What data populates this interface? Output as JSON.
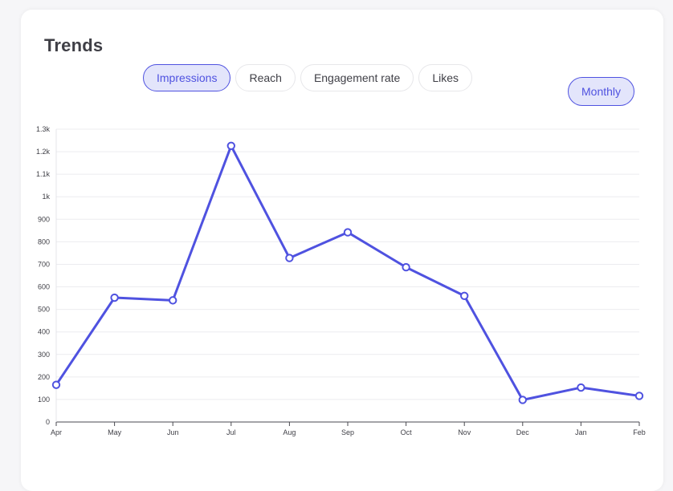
{
  "header": {
    "title": "Trends"
  },
  "tabs": [
    {
      "label": "Impressions",
      "active": true
    },
    {
      "label": "Reach",
      "active": false
    },
    {
      "label": "Engagement rate",
      "active": false
    },
    {
      "label": "Likes",
      "active": false
    }
  ],
  "period": {
    "label": "Monthly"
  },
  "colors": {
    "accent": "#4f52e0",
    "accent_bg": "#e3e5fb",
    "grid": "#ececef",
    "text": "#3f3f46"
  },
  "chart_data": {
    "type": "line",
    "title": "",
    "xlabel": "",
    "ylabel": "",
    "categories": [
      "Apr",
      "May",
      "Jun",
      "Jul",
      "Aug",
      "Sep",
      "Oct",
      "Nov",
      "Dec",
      "Jan",
      "Feb"
    ],
    "series": [
      {
        "values": [
          165,
          552,
          540,
          1226,
          728,
          842,
          687,
          560,
          98,
          153,
          116
        ]
      }
    ],
    "ylim": [
      0,
      1300
    ],
    "yticks": [
      0,
      100,
      200,
      300,
      400,
      500,
      600,
      700,
      800,
      900,
      1000,
      1100,
      1200,
      1300
    ],
    "ytick_labels": [
      "0",
      "100",
      "200",
      "300",
      "400",
      "500",
      "600",
      "700",
      "800",
      "900",
      "1k",
      "1.1k",
      "1.2k",
      "1.3k"
    ],
    "grid": true,
    "legend": "none"
  }
}
